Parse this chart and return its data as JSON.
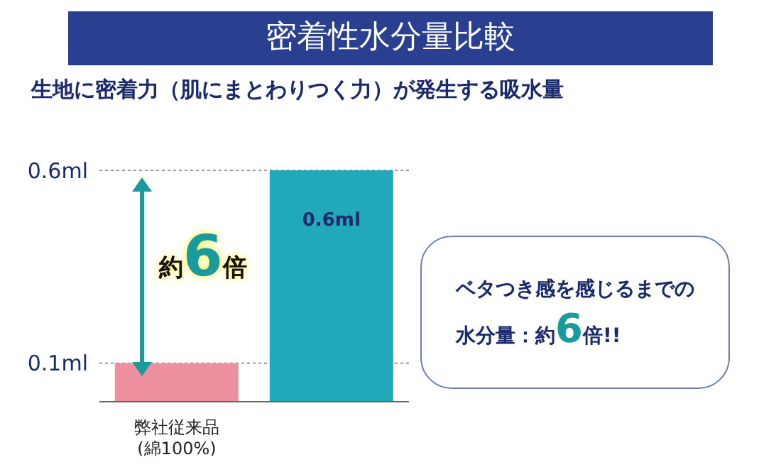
{
  "chart_data": {
    "type": "bar",
    "title": "密着性水分量比較",
    "subtitle": "生地に密着力（肌にまとわりつく力）が発生する吸水量",
    "categories": [
      "弊社従来品\n(綿100%)",
      null
    ],
    "values": [
      0.1,
      0.6
    ],
    "colors": [
      "#ee8fa0",
      "#22a9b9"
    ],
    "value_labels": [
      null,
      "0.6ml"
    ],
    "ylim": [
      0,
      0.6
    ],
    "yticks": [
      {
        "value": 0.1,
        "label": "0.1ml"
      },
      {
        "value": 0.6,
        "label": "0.6ml"
      }
    ],
    "grid": "y",
    "annotations": [
      "約6倍",
      "ベタつき感を感じるまでの",
      "水分量：約6倍!!"
    ]
  }
}
